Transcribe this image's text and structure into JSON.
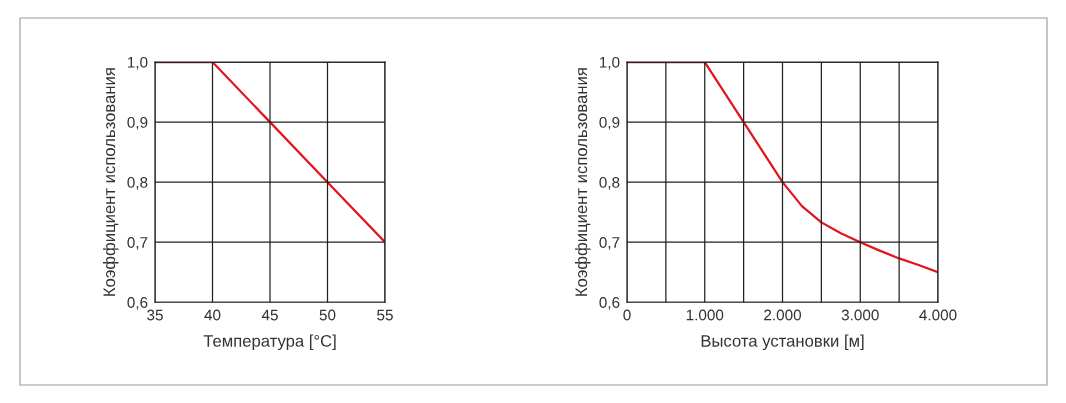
{
  "chart_data": [
    {
      "type": "line",
      "x": [
        35,
        40,
        45,
        50,
        55
      ],
      "xlabel": "Температура [°C]",
      "ylabel": "Коэффициент использования",
      "series": [
        {
          "color": "#e3141b",
          "values": [
            1.0,
            1.0,
            0.9,
            0.8,
            0.7
          ]
        }
      ],
      "xlim": [
        35,
        55
      ],
      "xticks": [
        35,
        40,
        45,
        50,
        55
      ],
      "ylim": [
        0.6,
        1.0
      ],
      "yticks": [
        {
          "value": 0.6,
          "label": "0,6"
        },
        {
          "value": 0.7,
          "label": "0,7"
        },
        {
          "value": 0.8,
          "label": "0,8"
        },
        {
          "value": 0.9,
          "label": "0,9"
        },
        {
          "value": 1.0,
          "label": "1,0"
        }
      ],
      "grid": true,
      "legend": false
    },
    {
      "type": "line",
      "x": [
        0,
        1000,
        1250,
        1500,
        1750,
        2000,
        2250,
        2500,
        2750,
        3000,
        3250,
        3500,
        3750,
        4000
      ],
      "xlabel": "Высота установки [м]",
      "ylabel": "Коэффициент использования",
      "series": [
        {
          "color": "#e3141b",
          "values": [
            1.0,
            1.0,
            0.95,
            0.9,
            0.85,
            0.8,
            0.76,
            0.733,
            0.715,
            0.7,
            0.686,
            0.673,
            0.662,
            0.65
          ]
        }
      ],
      "xlim": [
        0,
        4000
      ],
      "xticks": [
        0,
        {
          "value": 500,
          "label": null
        },
        {
          "value": 1000,
          "label": "1.000"
        },
        {
          "value": 1500,
          "label": null
        },
        {
          "value": 2000,
          "label": "2.000"
        },
        {
          "value": 2500,
          "label": null
        },
        {
          "value": 3000,
          "label": "3.000"
        },
        {
          "value": 3500,
          "label": null
        },
        {
          "value": 4000,
          "label": "4.000"
        }
      ],
      "ylim": [
        0.6,
        1.0
      ],
      "yticks": [
        {
          "value": 0.6,
          "label": "0,6"
        },
        {
          "value": 0.7,
          "label": "0,7"
        },
        {
          "value": 0.8,
          "label": "0,8"
        },
        {
          "value": 0.9,
          "label": "0,9"
        },
        {
          "value": 1.0,
          "label": "1,0"
        }
      ],
      "grid": true,
      "legend": false
    }
  ]
}
